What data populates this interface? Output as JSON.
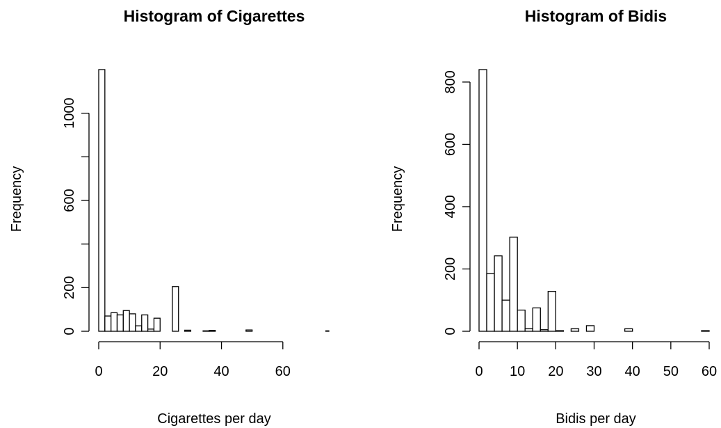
{
  "chart_data": [
    {
      "type": "bar",
      "title": "Histogram of Cigarettes",
      "xlabel": "Cigarettes per day",
      "ylabel": "Frequency",
      "xlim": [
        0,
        75
      ],
      "ylim": [
        0,
        1200
      ],
      "bin_width": 2,
      "x_ticks": [
        0,
        20,
        40,
        60
      ],
      "y_ticks": [
        0,
        200,
        400,
        600,
        800,
        1000
      ],
      "y_tick_labels": [
        "0",
        "200",
        "",
        "600",
        "",
        "1000"
      ],
      "bin_starts": [
        0,
        2,
        4,
        6,
        8,
        10,
        12,
        14,
        16,
        18,
        20,
        22,
        24,
        26,
        28,
        30,
        32,
        34,
        36,
        38,
        40,
        42,
        44,
        46,
        48,
        50,
        52,
        54,
        56,
        58,
        60,
        62,
        64,
        66,
        68,
        70,
        72,
        74
      ],
      "values": [
        1200,
        70,
        85,
        75,
        95,
        80,
        25,
        75,
        10,
        60,
        0,
        0,
        205,
        0,
        5,
        0,
        0,
        2,
        4,
        0,
        0,
        0,
        0,
        0,
        6,
        0,
        0,
        0,
        0,
        0,
        0,
        0,
        0,
        0,
        0,
        0,
        0,
        2
      ]
    },
    {
      "type": "bar",
      "title": "Histogram of Bidis",
      "xlabel": "Bidis per day",
      "ylabel": "Frequency",
      "xlim": [
        0,
        60
      ],
      "ylim": [
        0,
        840
      ],
      "bin_width": 2,
      "x_ticks": [
        0,
        10,
        20,
        30,
        40,
        50,
        60
      ],
      "y_ticks": [
        0,
        200,
        400,
        600,
        800
      ],
      "y_tick_labels": [
        "0",
        "200",
        "400",
        "600",
        "800"
      ],
      "bin_starts": [
        0,
        2,
        4,
        6,
        8,
        10,
        12,
        14,
        16,
        18,
        20,
        22,
        24,
        26,
        28,
        30,
        32,
        34,
        36,
        38,
        40,
        42,
        44,
        46,
        48,
        50,
        52,
        54,
        56,
        58
      ],
      "values": [
        840,
        185,
        242,
        100,
        302,
        68,
        8,
        75,
        5,
        128,
        2,
        0,
        8,
        0,
        18,
        0,
        0,
        0,
        0,
        8,
        0,
        0,
        0,
        0,
        0,
        0,
        0,
        0,
        0,
        2
      ]
    }
  ]
}
